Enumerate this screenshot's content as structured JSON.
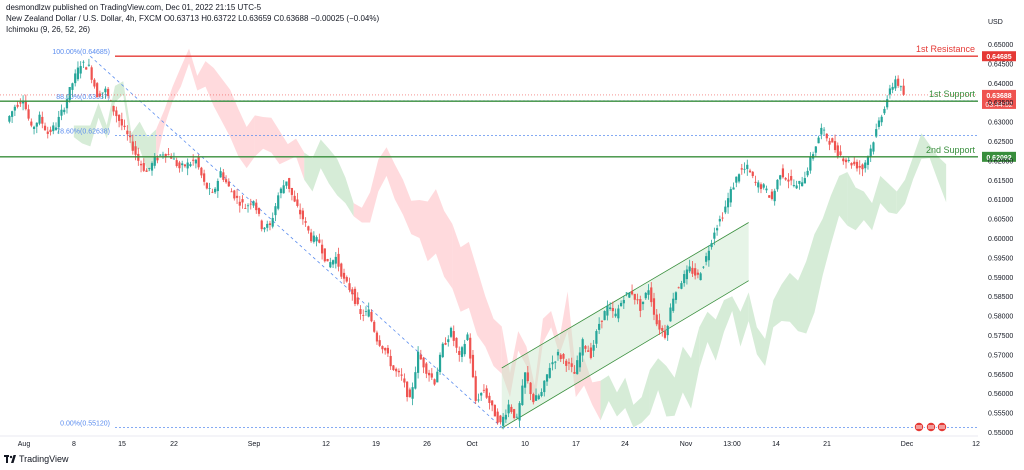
{
  "header": {
    "publisher_line": "desmondlzw published on TradingView.com, Dec 01, 2022 21:15 UTC-5",
    "symbol_line": "New Zealand Dollar / U.S. Dollar, 4h, FXCM  O0.63713  H0.63722  L0.63659  C0.63688  −0.00025 (−0.04%)",
    "indicator_line": "Ichimoku (9, 26, 52, 26)"
  },
  "footer": {
    "brand": "TradingView"
  },
  "colors": {
    "up": "#26a69a",
    "down": "#ef5350",
    "resistance": "#e53935",
    "support": "#388e3c",
    "fib": "#5b8def",
    "cloud_bull": "#c8e6c9",
    "cloud_bear": "#ffcdd2"
  },
  "chart_data": {
    "type": "candlestick",
    "currency_label": "USD",
    "ylim": [
      0.55,
      0.652
    ],
    "y_ticks": [
      "0.65000",
      "0.64500",
      "0.64000",
      "0.63500",
      "0.63000",
      "0.62500",
      "0.62000",
      "0.61500",
      "0.61000",
      "0.60500",
      "0.60000",
      "0.59500",
      "0.59000",
      "0.58500",
      "0.58000",
      "0.57500",
      "0.57000",
      "0.56500",
      "0.56000",
      "0.55500",
      "0.55000"
    ],
    "x_ticks": [
      "Aug",
      "8",
      "15",
      "22",
      "Sep",
      "12",
      "19",
      "26",
      "Oct",
      "10",
      "17",
      "24",
      "Nov",
      "13:00",
      "14",
      "21",
      "Dec",
      "12"
    ],
    "levels": [
      {
        "name": "1st Resistance",
        "value": "0.64685",
        "kind": "resistance"
      },
      {
        "name": "1st Support",
        "value": "0.63525",
        "kind": "support"
      },
      {
        "name": "2nd Support",
        "value": "0.62092",
        "kind": "support"
      }
    ],
    "fib_levels": [
      {
        "label": "100.00%(0.64685)",
        "value": 0.64685
      },
      {
        "label": "88.00%(0.63537)",
        "value": 0.63537
      },
      {
        "label": "78.60%(0.62638)",
        "value": 0.62638
      },
      {
        "label": "0.00%(0.55120)",
        "value": 0.5512
      }
    ],
    "last_price": {
      "value": "0.63688",
      "countdown": "03:44:52"
    },
    "close_path": [
      0.63,
      0.634,
      0.636,
      0.628,
      0.631,
      0.627,
      0.629,
      0.634,
      0.64,
      0.645,
      0.644,
      0.637,
      0.638,
      0.633,
      0.629,
      0.625,
      0.62,
      0.617,
      0.62,
      0.622,
      0.621,
      0.618,
      0.619,
      0.62,
      0.614,
      0.611,
      0.617,
      0.613,
      0.61,
      0.608,
      0.61,
      0.603,
      0.603,
      0.611,
      0.615,
      0.609,
      0.605,
      0.6,
      0.599,
      0.593,
      0.595,
      0.589,
      0.586,
      0.58,
      0.581,
      0.574,
      0.571,
      0.566,
      0.564,
      0.558,
      0.57,
      0.566,
      0.563,
      0.572,
      0.576,
      0.569,
      0.575,
      0.558,
      0.561,
      0.556,
      0.552,
      0.557,
      0.553,
      0.565,
      0.558,
      0.56,
      0.567,
      0.57,
      0.568,
      0.565,
      0.573,
      0.57,
      0.578,
      0.582,
      0.58,
      0.585,
      0.586,
      0.582,
      0.587,
      0.578,
      0.575,
      0.585,
      0.589,
      0.592,
      0.59,
      0.595,
      0.602,
      0.606,
      0.612,
      0.617,
      0.618,
      0.614,
      0.613,
      0.61,
      0.617,
      0.615,
      0.613,
      0.616,
      0.622,
      0.628,
      0.625,
      0.622,
      0.62,
      0.619,
      0.618,
      0.623,
      0.63,
      0.636,
      0.641,
      0.637
    ]
  }
}
